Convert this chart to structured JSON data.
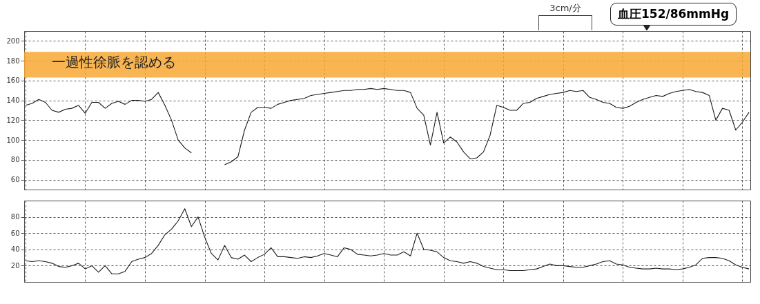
{
  "chart_data": [
    {
      "type": "line",
      "categories": [
        null,
        null,
        null,
        null,
        null,
        null,
        null,
        null,
        null,
        null,
        null,
        null,
        null,
        null,
        null,
        null,
        null,
        null,
        null,
        null,
        null,
        null,
        null,
        null,
        null,
        null,
        null,
        null,
        null,
        null,
        null,
        null,
        null,
        null,
        null,
        null,
        null,
        null,
        null,
        null,
        null,
        null,
        null,
        null,
        null,
        null,
        null,
        null,
        null,
        null,
        null,
        null,
        null,
        null,
        null,
        null,
        null,
        null,
        null,
        null,
        null,
        null,
        null,
        null,
        null,
        null,
        null,
        null,
        null,
        null,
        null,
        null,
        null,
        null,
        null,
        null,
        null,
        null,
        null,
        null,
        null,
        null,
        null,
        null,
        null,
        null,
        null,
        null,
        null,
        null,
        null,
        null,
        null,
        null,
        null,
        null,
        null,
        null,
        null,
        null,
        null,
        null,
        null,
        null,
        null,
        null,
        null,
        null,
        null,
        null
      ],
      "series": [
        {
          "color": "#1a1a1a",
          "values": [
            135,
            137,
            141,
            138,
            130,
            128,
            131,
            132,
            135,
            127,
            138,
            138,
            132,
            137,
            139,
            136,
            140,
            140,
            139,
            141,
            148,
            135,
            120,
            100,
            92,
            87,
            null,
            null,
            null,
            null,
            null,
            null,
            null,
            null,
            null,
            null,
            null,
            null,
            null,
            null,
            null,
            null,
            null,
            null,
            null,
            null,
            null,
            null,
            null,
            null,
            null,
            null,
            null,
            null,
            null,
            null,
            null,
            null,
            null,
            null,
            null,
            null,
            null,
            null,
            null,
            null,
            null,
            null,
            null,
            null,
            null,
            null,
            null,
            null,
            null,
            null,
            null,
            null,
            null,
            null,
            null,
            null,
            null,
            null,
            null,
            null,
            null,
            null,
            null,
            null,
            null,
            null,
            null,
            null,
            null,
            null,
            null,
            null,
            null,
            null,
            null,
            null,
            null,
            null,
            null,
            null,
            null,
            null,
            null,
            null
          ]
        },
        {
          "color": "#1a1a1a",
          "values": [
            null,
            null,
            null,
            null,
            null,
            null,
            null,
            null,
            null,
            null,
            null,
            null,
            null,
            null,
            null,
            null,
            null,
            null,
            null,
            null,
            null,
            null,
            null,
            null,
            null,
            null,
            null,
            null,
            null,
            null,
            75,
            78,
            83,
            110,
            128,
            133,
            133,
            132,
            136,
            138,
            140,
            141,
            142,
            145,
            146,
            147,
            148,
            149,
            150,
            150,
            151,
            151,
            152,
            151,
            152,
            151,
            150,
            150,
            148,
            132,
            125,
            95,
            128,
            97,
            103,
            98,
            88,
            81,
            82,
            88,
            105,
            135,
            133,
            130,
            130,
            137,
            138,
            142,
            144,
            146,
            147,
            148,
            150,
            149,
            150,
            143,
            141,
            138,
            137,
            133,
            132,
            134,
            138,
            141,
            143,
            145,
            144,
            147,
            149,
            150,
            151,
            149,
            148,
            145,
            120,
            132,
            130,
            110,
            118,
            128
          ]
        }
      ],
      "ylim": [
        50,
        210
      ],
      "yticks": [
        60,
        80,
        100,
        120,
        140,
        160,
        180,
        200
      ],
      "grid": true,
      "tick_labels": "y",
      "bands": [
        {
          "axis": "y",
          "from": 163,
          "to": 189,
          "label": "一過性徐脈を認める",
          "color": "#f7a832"
        }
      ],
      "annotations": [
        "3cm/分",
        "血圧152/86mmHg"
      ]
    },
    {
      "type": "line",
      "categories": [
        null,
        null,
        null,
        null,
        null,
        null,
        null,
        null,
        null,
        null,
        null,
        null,
        null,
        null,
        null,
        null,
        null,
        null,
        null,
        null,
        null,
        null,
        null,
        null,
        null,
        null,
        null,
        null,
        null,
        null,
        null,
        null,
        null,
        null,
        null,
        null,
        null,
        null,
        null,
        null,
        null,
        null,
        null,
        null,
        null,
        null,
        null,
        null,
        null,
        null,
        null,
        null,
        null,
        null,
        null,
        null,
        null,
        null,
        null,
        null,
        null,
        null,
        null,
        null,
        null,
        null,
        null,
        null,
        null,
        null,
        null,
        null,
        null,
        null,
        null,
        null,
        null,
        null,
        null,
        null,
        null,
        null,
        null,
        null,
        null,
        null,
        null,
        null,
        null,
        null,
        null,
        null,
        null,
        null,
        null,
        null,
        null,
        null,
        null,
        null,
        null,
        null,
        null,
        null,
        null,
        null,
        null,
        null,
        null,
        null
      ],
      "series": [
        {
          "color": "#1a1a1a",
          "values": [
            26,
            25,
            26,
            25,
            23,
            19,
            18,
            20,
            23,
            16,
            20,
            12,
            20,
            10,
            10,
            13,
            25,
            28,
            30,
            35,
            45,
            58,
            65,
            75,
            90,
            68,
            80,
            55,
            35,
            27,
            45,
            30,
            28,
            33,
            25,
            30,
            34,
            42,
            31,
            31,
            30,
            29,
            31,
            30,
            32,
            35,
            33,
            31,
            42,
            40,
            34,
            33,
            32,
            33,
            35,
            33,
            33,
            37,
            32,
            60,
            40,
            39,
            37,
            30,
            26,
            25,
            23,
            25,
            23,
            19,
            17,
            15,
            15,
            14,
            14,
            14,
            15,
            16,
            19,
            22,
            20,
            20,
            19,
            18,
            18,
            20,
            22,
            25,
            26,
            22,
            21,
            18,
            17,
            16,
            16,
            17,
            16,
            16,
            15,
            16,
            18,
            21,
            29,
            30,
            30,
            29,
            26,
            21,
            18,
            16
          ]
        }
      ],
      "ylim": [
        0,
        100
      ],
      "yticks": [
        20,
        40,
        60,
        80
      ],
      "grid": true,
      "tick_labels": "y"
    }
  ]
}
